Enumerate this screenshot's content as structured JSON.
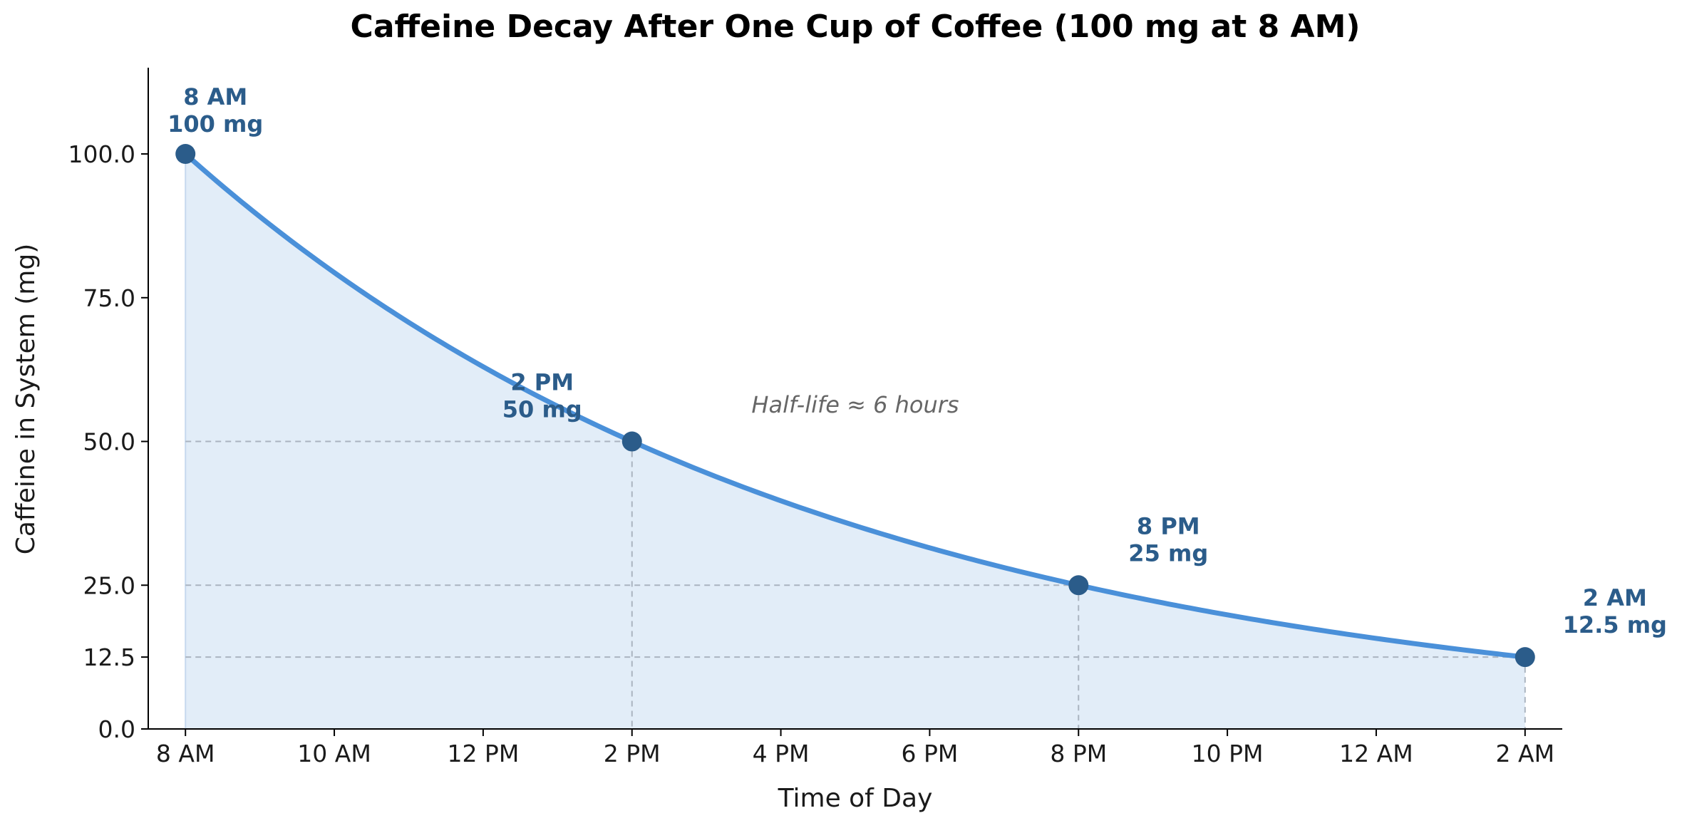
{
  "colors": {
    "line": "#4a90d9",
    "fill": "#e2edf8",
    "marker": "#2b5c8a",
    "guide": "#aab4c0",
    "axis": "#000000"
  },
  "chart_data": {
    "type": "line",
    "title": "Caffeine Decay After One Cup of Coffee (100 mg at 8 AM)",
    "xlabel": "Time of Day",
    "ylabel": "Caffeine in System (mg)",
    "x_ticks": [
      {
        "hours": 0,
        "label": "8 AM"
      },
      {
        "hours": 2,
        "label": "10 AM"
      },
      {
        "hours": 4,
        "label": "12 PM"
      },
      {
        "hours": 6,
        "label": "2 PM"
      },
      {
        "hours": 8,
        "label": "4 PM"
      },
      {
        "hours": 10,
        "label": "6 PM"
      },
      {
        "hours": 12,
        "label": "8 PM"
      },
      {
        "hours": 14,
        "label": "10 PM"
      },
      {
        "hours": 16,
        "label": "12 AM"
      },
      {
        "hours": 18,
        "label": "2 AM"
      }
    ],
    "y_ticks": [
      {
        "value": 0,
        "label": "0.0"
      },
      {
        "value": 12.5,
        "label": "12.5"
      },
      {
        "value": 25,
        "label": "25.0"
      },
      {
        "value": 50,
        "label": "50.0"
      },
      {
        "value": 75,
        "label": "75.0"
      },
      {
        "value": 100,
        "label": "100.0"
      }
    ],
    "xlim": [
      -0.5,
      18.5
    ],
    "ylim": [
      0,
      115
    ],
    "initial_mg": 100,
    "half_life_hours": 6,
    "points": [
      {
        "hours": 0,
        "value": 100,
        "label_line1": "8 AM",
        "label_line2": "100 mg"
      },
      {
        "hours": 6,
        "value": 50,
        "label_line1": "2 PM",
        "label_line2": "50 mg"
      },
      {
        "hours": 12,
        "value": 25,
        "label_line1": "8 PM",
        "label_line2": "25 mg"
      },
      {
        "hours": 18,
        "value": 12.5,
        "label_line1": "2 AM",
        "label_line2": "12.5 mg"
      }
    ],
    "annotation": "Half-life ≈ 6 hours",
    "grid": false
  }
}
